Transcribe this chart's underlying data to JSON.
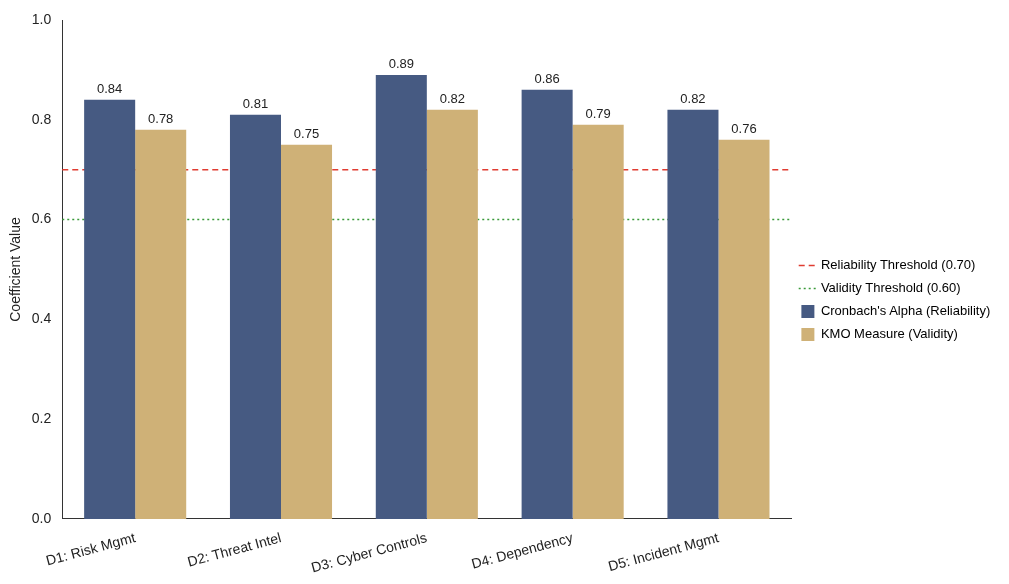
{
  "chart_data": {
    "type": "bar",
    "ylabel": "Coefficient Value",
    "categories": [
      "D1: Risk Mgmt",
      "D2: Threat Intel",
      "D3: Cyber Controls",
      "D4: Dependency",
      "D5: Incident Mgmt"
    ],
    "series": [
      {
        "name": "Cronbach's Alpha (Reliability)",
        "color": "#465a82",
        "values": [
          0.84,
          0.81,
          0.89,
          0.86,
          0.82
        ]
      },
      {
        "name": "KMO Measure (Validity)",
        "color": "#cfb177",
        "values": [
          0.78,
          0.75,
          0.82,
          0.79,
          0.76
        ]
      }
    ],
    "ylim": [
      0,
      1
    ],
    "yticks": [
      {
        "value": 0,
        "label": "0.0"
      },
      {
        "value": 0.2,
        "label": "0.2"
      },
      {
        "value": 0.4,
        "label": "0.4"
      },
      {
        "value": 0.6,
        "label": "0.6"
      },
      {
        "value": 0.8,
        "label": "0.8"
      },
      {
        "value": 1,
        "label": "1.0"
      }
    ],
    "ref_lines": [
      {
        "axis": "y",
        "value": 0.7,
        "label": "Reliability Threshold (0.70)",
        "color": "#e03c31",
        "line_style": "dashed"
      },
      {
        "axis": "y",
        "value": 0.6,
        "label": "Validity Threshold (0.60)",
        "color": "#3a9a3a",
        "line_style": "dotted"
      }
    ],
    "data_labels": true,
    "grid": false,
    "legend": "right"
  }
}
